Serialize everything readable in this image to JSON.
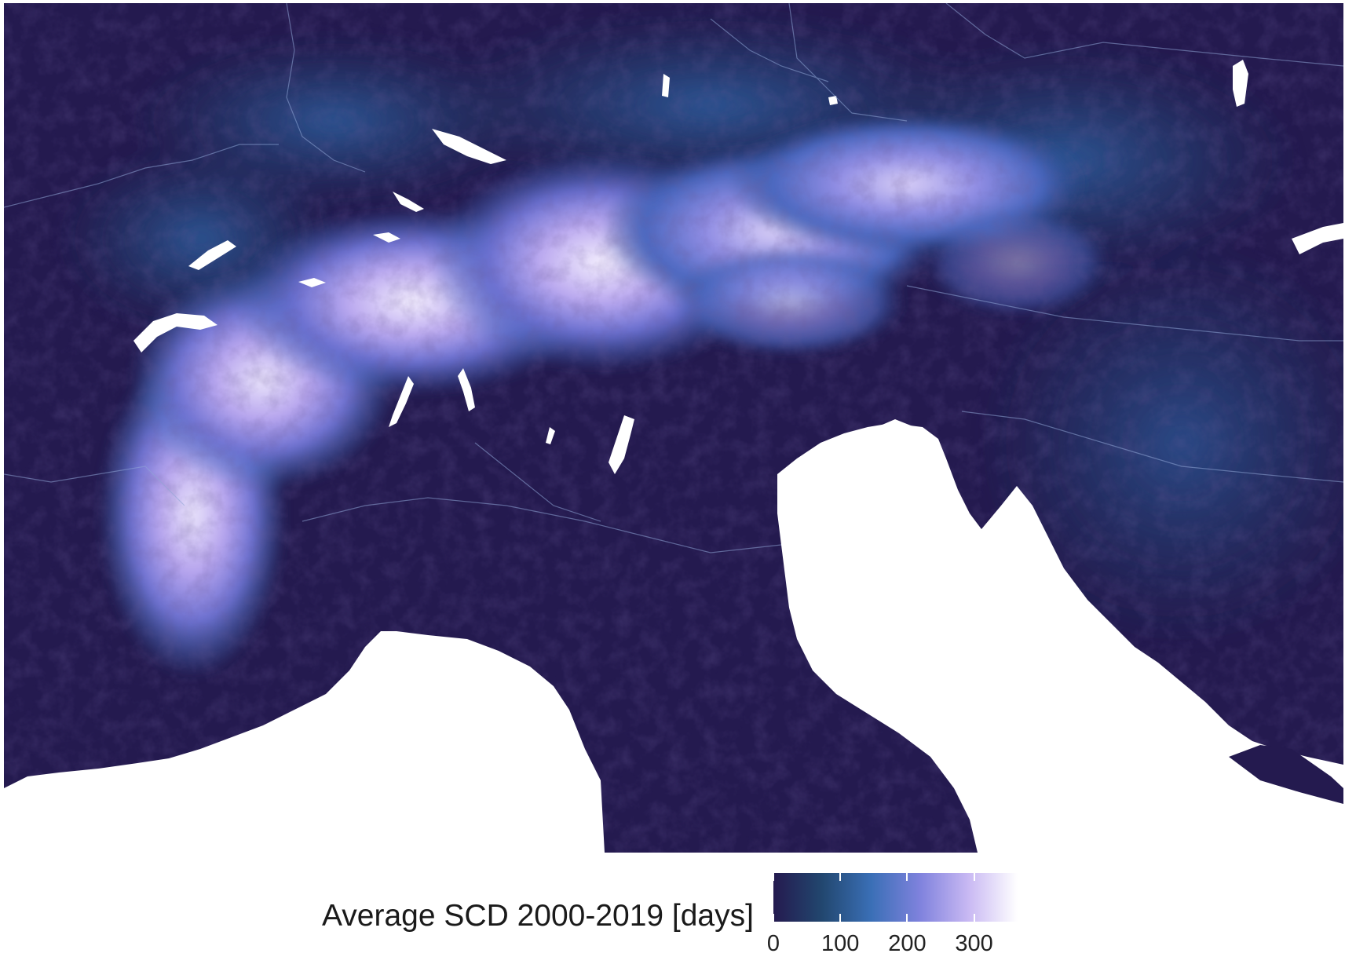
{
  "map": {
    "colors": {
      "low": "#241a4f",
      "mid_low": "#22476f",
      "mid": "#3a6fb6",
      "mid_high": "#7f82dd",
      "high": "#c9b9f3",
      "max": "#ffffff",
      "water": "#ffffff"
    }
  },
  "legend": {
    "title": "Average SCD 2000-2019 [days]",
    "ticks": [
      "0",
      "100",
      "200",
      "300"
    ],
    "tick_values": [
      0,
      100,
      200,
      300
    ],
    "range": [
      0,
      365
    ],
    "colors": [
      "#241a4f",
      "#22476f",
      "#3a6fb6",
      "#7f82dd",
      "#c9b9f3",
      "#ffffff"
    ]
  }
}
